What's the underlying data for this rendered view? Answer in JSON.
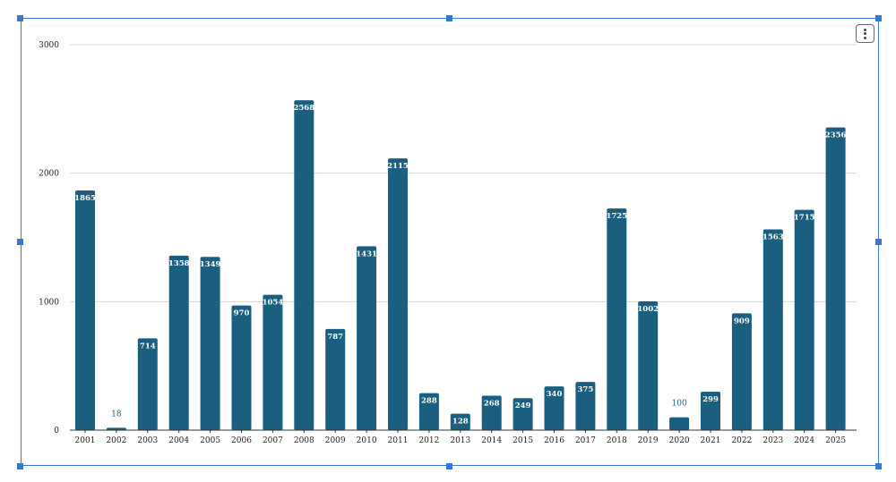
{
  "chart_data": {
    "type": "bar",
    "categories": [
      "2001",
      "2002",
      "2003",
      "2004",
      "2005",
      "2006",
      "2007",
      "2008",
      "2009",
      "2010",
      "2011",
      "2012",
      "2013",
      "2014",
      "2015",
      "2016",
      "2017",
      "2018",
      "2019",
      "2020",
      "2021",
      "2022",
      "2023",
      "2024",
      "2025"
    ],
    "values": [
      1865,
      18,
      714,
      1358,
      1349,
      970,
      1054,
      2568,
      787,
      1431,
      2115,
      288,
      128,
      268,
      249,
      340,
      375,
      1725,
      1002,
      100,
      299,
      909,
      1563,
      1715,
      2356
    ],
    "title": "",
    "xlabel": "",
    "ylabel": "",
    "ylim": [
      0,
      3000
    ],
    "yticks": [
      "0",
      "1000",
      "2000",
      "3000"
    ],
    "grid": true,
    "bar_color": "#1a5f80",
    "data_labels": true
  },
  "ui": {
    "selection_color": "#2f7ad8",
    "menu_icon": "more-vertical-icon"
  }
}
